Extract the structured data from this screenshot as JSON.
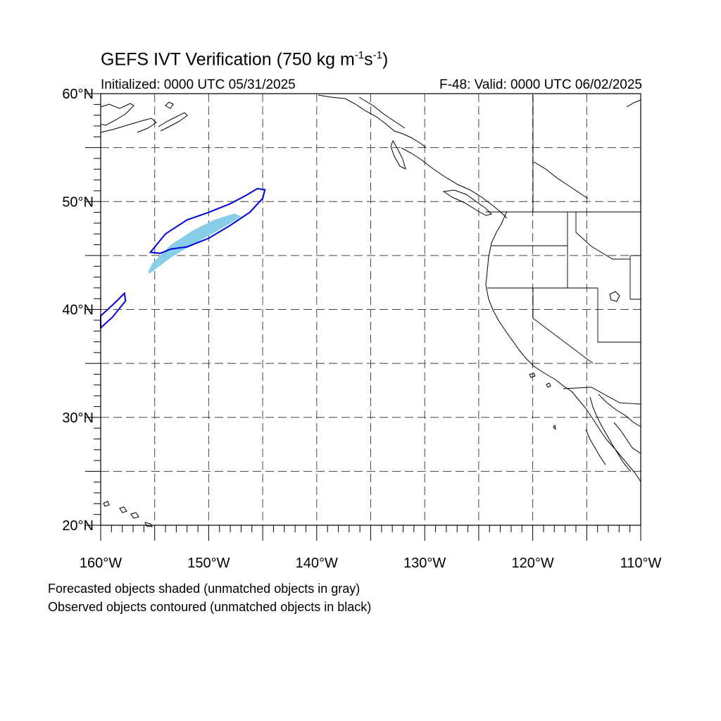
{
  "header": {
    "title_main": "GEFS IVT Verification (750 kg m",
    "title_exp1": "-1",
    "title_mid": "s",
    "title_exp2": "-1",
    "title_end": ")",
    "initialized": "Initialized: 0000 UTC 05/31/2025",
    "valid": "F-48: Valid: 0000 UTC 06/02/2025"
  },
  "map": {
    "projection": "cylindrical-equidistant",
    "lon_range": [
      -160,
      -110
    ],
    "lat_range": [
      20,
      60
    ],
    "gridlines": "dashed",
    "lat_ticks": [
      {
        "value": 20,
        "label": "20°N"
      },
      {
        "value": 30,
        "label": "30°N"
      },
      {
        "value": 40,
        "label": "40°N"
      },
      {
        "value": 50,
        "label": "50°N"
      },
      {
        "value": 60,
        "label": "60°N"
      }
    ],
    "lon_ticks": [
      {
        "value": -160,
        "label": "160°W"
      },
      {
        "value": -150,
        "label": "150°W"
      },
      {
        "value": -140,
        "label": "140°W"
      },
      {
        "value": -130,
        "label": "130°W"
      },
      {
        "value": -120,
        "label": "120°W"
      },
      {
        "value": -110,
        "label": "110°W"
      }
    ],
    "forecast_object_color": "#87ceeb",
    "observed_contour_color": "#0000dd",
    "forecast_objects": [
      {
        "matched": true,
        "polygon": [
          [
            -155.5,
            43.3
          ],
          [
            -153.5,
            44.8
          ],
          [
            -151.5,
            46.0
          ],
          [
            -149.5,
            47.1
          ],
          [
            -147.8,
            48.1
          ],
          [
            -147.0,
            48.6
          ],
          [
            -147.6,
            48.9
          ],
          [
            -149.5,
            48.3
          ],
          [
            -151.5,
            47.3
          ],
          [
            -153.5,
            46.0
          ],
          [
            -155.2,
            44.3
          ],
          [
            -155.6,
            43.5
          ]
        ]
      }
    ],
    "observed_objects": [
      {
        "matched": true,
        "polygon": [
          [
            -155.4,
            45.3
          ],
          [
            -154.0,
            47.0
          ],
          [
            -152.0,
            48.3
          ],
          [
            -150.0,
            49.0
          ],
          [
            -148.0,
            49.8
          ],
          [
            -146.5,
            50.6
          ],
          [
            -145.5,
            51.2
          ],
          [
            -144.8,
            51.1
          ],
          [
            -145.0,
            50.3
          ],
          [
            -146.2,
            49.0
          ],
          [
            -148.0,
            47.8
          ],
          [
            -150.0,
            46.6
          ],
          [
            -152.0,
            45.8
          ],
          [
            -153.5,
            45.6
          ],
          [
            -154.5,
            45.2
          ]
        ]
      },
      {
        "matched": true,
        "polygon": [
          [
            -160.0,
            39.4
          ],
          [
            -158.6,
            40.7
          ],
          [
            -157.8,
            41.5
          ],
          [
            -157.7,
            40.8
          ],
          [
            -158.9,
            39.3
          ],
          [
            -160.0,
            38.3
          ]
        ]
      }
    ]
  },
  "captions": [
    "Forecasted objects shaded (unmatched objects in gray)",
    "Observed objects contoured (unmatched objects in black)"
  ]
}
